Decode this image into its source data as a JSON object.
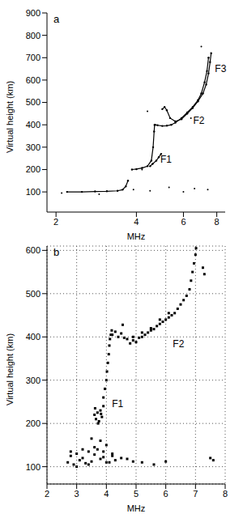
{
  "chart_data": [
    {
      "type": "scatter",
      "title": "a",
      "x_label": "MHz",
      "y_label": "Virtual height (km)",
      "log": "x",
      "xlim": [
        1.85,
        8.6
      ],
      "xticks": [
        2,
        4,
        6,
        8
      ],
      "ylim": [
        10,
        900
      ],
      "yticks": [
        100,
        200,
        300,
        400,
        500,
        600,
        700,
        800,
        900
      ],
      "grid": false,
      "series": [
        {
          "color": "#000000",
          "marker": "circle",
          "line_style": "solid",
          "x": [
            2.2,
            2.5,
            2.8,
            3.1,
            3.4,
            3.55,
            3.65,
            3.72
          ],
          "values": [
            100,
            100,
            102,
            103,
            105,
            110,
            125,
            150
          ]
        },
        {
          "color": "#000000",
          "marker": "circle",
          "line_style": "solid",
          "x": [
            3.85,
            4.0,
            4.2,
            4.4,
            4.55,
            4.62,
            4.66,
            4.68
          ],
          "values": [
            200,
            202,
            207,
            215,
            240,
            300,
            370,
            400
          ]
        },
        {
          "color": "#000000",
          "marker": "circle",
          "line_style": "solid",
          "x": [
            4.5,
            4.6,
            4.75,
            4.85,
            4.95
          ],
          "values": [
            215,
            225,
            240,
            255,
            270
          ]
        },
        {
          "color": "#000000",
          "marker": "circle",
          "line_style": "solid",
          "x": [
            4.7,
            4.8,
            5.0,
            5.2,
            5.4,
            5.6,
            5.9,
            6.2,
            6.5,
            6.8,
            7.0,
            7.2,
            7.35,
            7.45
          ],
          "values": [
            400,
            398,
            395,
            396,
            400,
            410,
            430,
            455,
            480,
            510,
            540,
            590,
            640,
            700
          ]
        },
        {
          "color": "#000000",
          "marker": "circle",
          "line_style": "solid",
          "x": [
            5.0,
            5.1,
            5.2,
            5.35,
            5.6,
            5.9,
            6.2,
            6.5,
            6.8,
            7.1,
            7.3,
            7.45,
            7.55,
            7.62
          ],
          "values": [
            470,
            480,
            465,
            430,
            415,
            425,
            450,
            475,
            505,
            540,
            580,
            630,
            680,
            720
          ]
        },
        {
          "color": "#000000",
          "marker": "dot",
          "line_style": "none",
          "x": [
            2.1,
            2.9,
            3.9,
            4.2,
            4.5,
            4.4,
            5.3,
            6.0,
            6.6,
            7.4,
            7.0,
            6.4
          ],
          "values": [
            95,
            90,
            110,
            200,
            105,
            460,
            120,
            100,
            115,
            110,
            750,
            430
          ]
        }
      ],
      "annotations": [
        {
          "text": "F1",
          "x": 4.75,
          "y": 245
        },
        {
          "text": "F2",
          "x": 6.3,
          "y": 420
        },
        {
          "text": "F3",
          "x": 7.6,
          "y": 650
        }
      ]
    },
    {
      "type": "scatter",
      "title": "b",
      "x_label": "MHz",
      "y_label": "Virtual height (km)",
      "xlim": [
        2,
        8
      ],
      "xticks": [
        2,
        3,
        4,
        5,
        6,
        7,
        8
      ],
      "ylim": [
        60,
        610
      ],
      "yticks": [
        100,
        200,
        300,
        400,
        500,
        600
      ],
      "grid": true,
      "series": [
        {
          "color": "#000000",
          "marker": "square",
          "line_style": "none",
          "x": [
            2.7,
            2.8,
            2.9,
            3.0,
            3.1,
            3.2,
            3.3,
            3.4,
            3.5,
            3.6,
            3.7,
            3.8,
            3.9,
            4.0,
            4.1,
            4.2,
            4.3,
            4.5,
            4.7,
            4.9,
            2.8,
            3.0,
            3.2,
            3.4,
            3.6,
            3.8,
            4.0,
            4.2,
            3.5,
            3.9,
            5.2,
            5.6,
            6.0
          ],
          "values": [
            110,
            125,
            105,
            130,
            115,
            120,
            108,
            135,
            112,
            128,
            140,
            118,
            122,
            150,
            110,
            125,
            115,
            120,
            118,
            112,
            135,
            100,
            140,
            105,
            145,
            160,
            110,
            130,
            165,
            135,
            110,
            105,
            112
          ]
        },
        {
          "color": "#000000",
          "marker": "square",
          "line_style": "none",
          "x": [
            3.6,
            3.65,
            3.7,
            3.75,
            3.8,
            3.85,
            3.9,
            3.62,
            3.72,
            3.82,
            3.9,
            3.95,
            4.0,
            4.02,
            4.05,
            4.08,
            4.1,
            4.12,
            4.15,
            4.18
          ],
          "values": [
            220,
            210,
            225,
            205,
            230,
            215,
            240,
            235,
            200,
            222,
            260,
            280,
            300,
            320,
            340,
            360,
            380,
            395,
            405,
            415
          ]
        },
        {
          "color": "#000000",
          "marker": "square",
          "line_style": "none",
          "x": [
            4.2,
            4.3,
            4.4,
            4.5,
            4.6,
            4.55,
            4.7,
            4.8,
            4.9,
            5.0,
            5.1,
            5.2,
            5.3,
            5.4,
            5.5,
            5.6,
            5.7,
            5.8,
            5.9,
            6.0,
            6.1,
            6.2,
            6.3,
            6.4,
            6.5,
            6.6,
            6.7,
            6.8,
            6.85,
            6.9,
            6.95,
            7.0,
            7.02,
            4.9,
            5.2,
            5.5,
            5.8,
            6.1
          ],
          "values": [
            405,
            412,
            400,
            408,
            398,
            428,
            395,
            385,
            392,
            388,
            398,
            400,
            405,
            410,
            415,
            418,
            425,
            430,
            435,
            440,
            445,
            450,
            455,
            465,
            475,
            485,
            495,
            510,
            530,
            550,
            570,
            590,
            605,
            400,
            410,
            420,
            440,
            455
          ]
        },
        {
          "color": "#000000",
          "marker": "square",
          "line_style": "none",
          "x": [
            7.25,
            7.3,
            7.5,
            7.6
          ],
          "values": [
            560,
            545,
            120,
            115
          ]
        }
      ],
      "annotations": [
        {
          "text": "F1",
          "x": 4.05,
          "y": 245
        },
        {
          "text": "F2",
          "x": 6.1,
          "y": 385
        }
      ]
    }
  ]
}
